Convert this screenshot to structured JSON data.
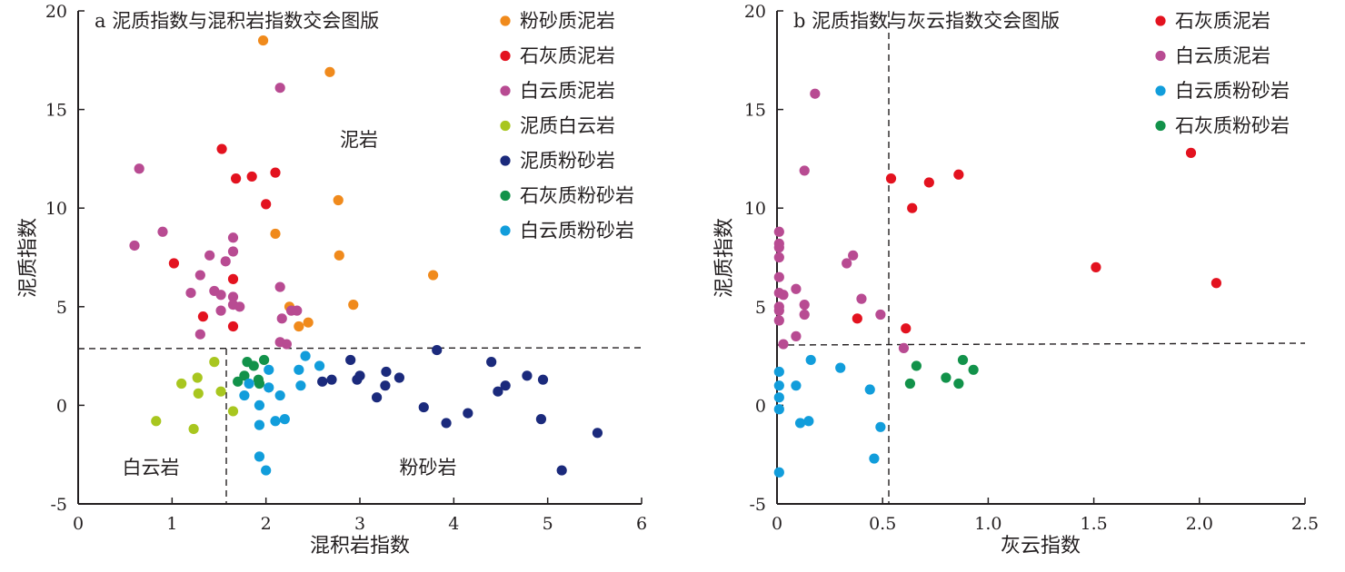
{
  "chart_data": [
    {
      "type": "scatter",
      "title": "a 泥质指数与混积岩指数交会图版",
      "xlabel": "混积岩指数",
      "ylabel": "泥质指数",
      "xlim": [
        0,
        6
      ],
      "ylim": [
        -5,
        20
      ],
      "xticks": [
        0,
        1,
        2,
        3,
        4,
        5,
        6
      ],
      "yticks": [
        -5,
        0,
        5,
        10,
        15,
        20
      ],
      "grid": false,
      "legend_position": "top-right",
      "threshold_x": 1.58,
      "threshold_y": 2.8,
      "regions": [
        "泥岩",
        "白云岩",
        "粉砂岩"
      ],
      "series": [
        {
          "name": "粉砂质泥岩",
          "color": "#f08a1c",
          "points": [
            [
              1.97,
              18.5
            ],
            [
              2.68,
              16.9
            ],
            [
              2.77,
              10.4
            ],
            [
              2.1,
              8.7
            ],
            [
              2.78,
              7.6
            ],
            [
              3.78,
              6.6
            ],
            [
              2.93,
              5.1
            ],
            [
              2.25,
              5.0
            ],
            [
              2.45,
              4.2
            ],
            [
              2.35,
              4.0
            ]
          ]
        },
        {
          "name": "石灰质泥岩",
          "color": "#e3121f",
          "points": [
            [
              1.53,
              13.0
            ],
            [
              1.85,
              11.6
            ],
            [
              2.1,
              11.8
            ],
            [
              1.68,
              11.5
            ],
            [
              2.0,
              10.2
            ],
            [
              1.02,
              7.2
            ],
            [
              1.65,
              6.4
            ],
            [
              1.33,
              4.5
            ],
            [
              1.65,
              4.0
            ]
          ]
        },
        {
          "name": "白云质泥岩",
          "color": "#b84b92",
          "points": [
            [
              0.65,
              12.0
            ],
            [
              2.15,
              16.1
            ],
            [
              0.6,
              8.1
            ],
            [
              0.9,
              8.8
            ],
            [
              1.65,
              8.5
            ],
            [
              1.65,
              7.8
            ],
            [
              1.4,
              7.6
            ],
            [
              1.57,
              7.3
            ],
            [
              1.3,
              6.6
            ],
            [
              2.15,
              6.0
            ],
            [
              1.2,
              5.7
            ],
            [
              1.45,
              5.8
            ],
            [
              1.52,
              5.6
            ],
            [
              1.65,
              5.5
            ],
            [
              1.65,
              5.1
            ],
            [
              1.72,
              5.0
            ],
            [
              1.52,
              4.8
            ],
            [
              2.27,
              4.8
            ],
            [
              2.33,
              4.8
            ],
            [
              2.17,
              4.4
            ],
            [
              1.3,
              3.6
            ],
            [
              2.15,
              3.2
            ],
            [
              2.22,
              3.1
            ]
          ]
        },
        {
          "name": "泥质白云岩",
          "color": "#a8c61f",
          "points": [
            [
              1.45,
              2.2
            ],
            [
              1.27,
              1.4
            ],
            [
              1.1,
              1.1
            ],
            [
              1.28,
              0.6
            ],
            [
              1.52,
              0.7
            ],
            [
              1.65,
              -0.3
            ],
            [
              0.83,
              -0.8
            ],
            [
              1.23,
              -1.2
            ]
          ]
        },
        {
          "name": "泥质粉砂岩",
          "color": "#1b2a7c",
          "points": [
            [
              3.82,
              2.8
            ],
            [
              2.9,
              2.3
            ],
            [
              4.4,
              2.2
            ],
            [
              3.28,
              1.7
            ],
            [
              3.0,
              1.5
            ],
            [
              2.97,
              1.3
            ],
            [
              3.42,
              1.4
            ],
            [
              4.78,
              1.5
            ],
            [
              4.95,
              1.3
            ],
            [
              2.6,
              1.2
            ],
            [
              2.7,
              1.3
            ],
            [
              3.27,
              1.0
            ],
            [
              4.55,
              1.0
            ],
            [
              4.47,
              0.7
            ],
            [
              3.18,
              0.4
            ],
            [
              3.68,
              -0.1
            ],
            [
              4.15,
              -0.4
            ],
            [
              3.92,
              -0.9
            ],
            [
              4.93,
              -0.7
            ],
            [
              5.53,
              -1.4
            ],
            [
              5.15,
              -3.3
            ]
          ]
        },
        {
          "name": "石灰质粉砂岩",
          "color": "#12924a",
          "points": [
            [
              1.8,
              2.2
            ],
            [
              1.98,
              2.3
            ],
            [
              1.87,
              2.0
            ],
            [
              1.77,
              1.5
            ],
            [
              1.92,
              1.3
            ],
            [
              1.7,
              1.2
            ],
            [
              1.93,
              1.1
            ]
          ]
        },
        {
          "name": "白云质粉砂岩",
          "color": "#119ddb",
          "points": [
            [
              2.42,
              2.5
            ],
            [
              2.57,
              2.0
            ],
            [
              2.03,
              1.8
            ],
            [
              2.35,
              1.8
            ],
            [
              1.82,
              1.1
            ],
            [
              2.03,
              0.9
            ],
            [
              2.37,
              1.0
            ],
            [
              1.77,
              0.5
            ],
            [
              2.15,
              0.5
            ],
            [
              1.93,
              0.0
            ],
            [
              2.2,
              -0.7
            ],
            [
              2.1,
              -0.8
            ],
            [
              1.93,
              -1.0
            ],
            [
              1.93,
              -2.6
            ],
            [
              2.0,
              -3.3
            ]
          ]
        }
      ]
    },
    {
      "type": "scatter",
      "title": "b 泥质指数与灰云指数交会图版",
      "xlabel": "灰云指数",
      "ylabel": "泥质指数",
      "xlim": [
        0,
        2.5
      ],
      "ylim": [
        -5,
        20
      ],
      "xticks": [
        "0",
        "0.5",
        "1.0",
        "1.5",
        "2.0",
        "2.5"
      ],
      "xtick_values": [
        0,
        0.5,
        1.0,
        1.5,
        2.0,
        2.5
      ],
      "yticks": [
        -5,
        0,
        5,
        10,
        15,
        20
      ],
      "grid": false,
      "legend_position": "top-right",
      "threshold_x": 0.53,
      "threshold_y": 3.1,
      "series": [
        {
          "name": "石灰质泥岩",
          "color": "#e3121f",
          "points": [
            [
              1.96,
              12.8
            ],
            [
              0.86,
              11.7
            ],
            [
              0.54,
              11.5
            ],
            [
              0.72,
              11.3
            ],
            [
              0.64,
              10.0
            ],
            [
              1.51,
              7.0
            ],
            [
              2.08,
              6.2
            ],
            [
              0.38,
              4.4
            ],
            [
              0.61,
              3.9
            ]
          ]
        },
        {
          "name": "白云质泥岩",
          "color": "#b84b92",
          "points": [
            [
              0.18,
              15.8
            ],
            [
              0.13,
              11.9
            ],
            [
              0.01,
              8.8
            ],
            [
              0.01,
              8.2
            ],
            [
              0.01,
              8.0
            ],
            [
              0.01,
              7.5
            ],
            [
              0.36,
              7.6
            ],
            [
              0.33,
              7.2
            ],
            [
              0.01,
              6.5
            ],
            [
              0.09,
              5.9
            ],
            [
              0.01,
              5.7
            ],
            [
              0.03,
              5.6
            ],
            [
              0.01,
              5.0
            ],
            [
              0.13,
              5.1
            ],
            [
              0.4,
              5.4
            ],
            [
              0.49,
              4.6
            ],
            [
              0.01,
              4.8
            ],
            [
              0.13,
              4.6
            ],
            [
              0.01,
              4.3
            ],
            [
              0.09,
              3.5
            ],
            [
              0.03,
              3.1
            ],
            [
              0.6,
              2.9
            ]
          ]
        },
        {
          "name": "白云质粉砂岩",
          "color": "#119ddb",
          "points": [
            [
              0.16,
              2.3
            ],
            [
              0.3,
              1.9
            ],
            [
              0.01,
              1.7
            ],
            [
              0.01,
              1.0
            ],
            [
              0.09,
              1.0
            ],
            [
              0.44,
              0.8
            ],
            [
              0.01,
              0.4
            ],
            [
              0.01,
              -0.2
            ],
            [
              0.15,
              -0.8
            ],
            [
              0.11,
              -0.9
            ],
            [
              0.49,
              -1.1
            ],
            [
              0.46,
              -2.7
            ],
            [
              0.01,
              -3.4
            ]
          ]
        },
        {
          "name": "石灰质粉砂岩",
          "color": "#12924a",
          "points": [
            [
              0.88,
              2.3
            ],
            [
              0.66,
              2.0
            ],
            [
              0.93,
              1.8
            ],
            [
              0.8,
              1.4
            ],
            [
              0.63,
              1.1
            ],
            [
              0.86,
              1.1
            ]
          ]
        }
      ]
    }
  ],
  "page": {
    "panels": [
      {
        "regions": [
          {
            "text": "泥岩"
          },
          {
            "text": "白云岩"
          },
          {
            "text": "粉砂岩"
          }
        ]
      }
    ]
  }
}
